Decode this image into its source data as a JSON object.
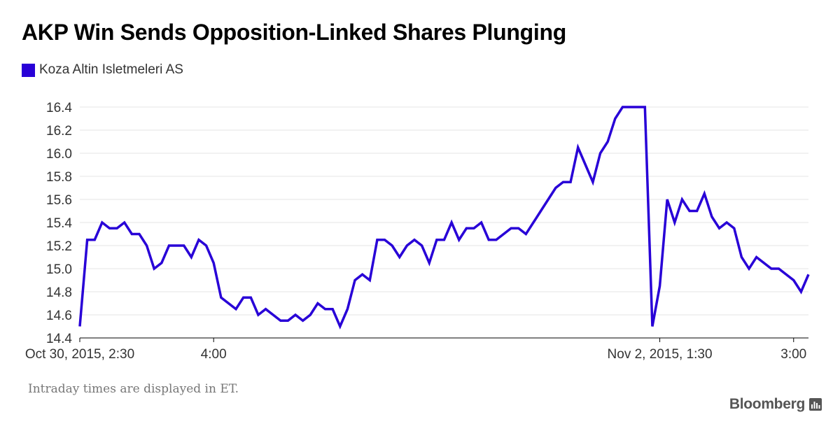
{
  "chart_data": {
    "type": "line",
    "title": "AKP Win Sends Opposition-Linked Shares Plunging",
    "xlabel": "",
    "ylabel": "",
    "ylim": [
      14.4,
      16.4
    ],
    "yticks": [
      "14.4",
      "14.6",
      "14.8",
      "15.0",
      "15.2",
      "15.4",
      "15.6",
      "15.8",
      "16.0",
      "16.2",
      "16.4"
    ],
    "xticks": [
      {
        "label": "Oct 30, 2015, 2:30",
        "index": 0
      },
      {
        "label": "4:00",
        "index": 18
      },
      {
        "label": "Nov 2, 2015, 1:30",
        "index": 78
      },
      {
        "label": "3:00",
        "index": 96
      }
    ],
    "grid": true,
    "legend_position": "top-left",
    "colors": {
      "series": "#2800d7",
      "grid": "#e6e6e6",
      "axis": "#000000"
    },
    "series": [
      {
        "name": "Koza Altin Isletmeleri AS",
        "values": [
          14.5,
          15.25,
          15.25,
          15.4,
          15.35,
          15.35,
          15.4,
          15.3,
          15.3,
          15.2,
          15.0,
          15.05,
          15.2,
          15.2,
          15.2,
          15.1,
          15.25,
          15.2,
          15.05,
          14.75,
          14.7,
          14.65,
          14.75,
          14.75,
          14.6,
          14.65,
          14.6,
          14.55,
          14.55,
          14.6,
          14.55,
          14.6,
          14.7,
          14.65,
          14.65,
          14.5,
          14.65,
          14.9,
          14.95,
          14.9,
          15.25,
          15.25,
          15.2,
          15.1,
          15.2,
          15.25,
          15.2,
          15.05,
          15.25,
          15.25,
          15.4,
          15.25,
          15.35,
          15.35,
          15.4,
          15.25,
          15.25,
          15.3,
          15.35,
          15.35,
          15.3,
          15.4,
          15.5,
          15.6,
          15.7,
          15.75,
          15.75,
          16.05,
          15.9,
          15.75,
          16.0,
          16.1,
          16.3,
          16.4,
          16.4,
          16.4,
          16.4,
          14.5,
          14.85,
          15.6,
          15.4,
          15.6,
          15.5,
          15.5,
          15.65,
          15.45,
          15.35,
          15.4,
          15.35,
          15.1,
          15.0,
          15.1,
          15.05,
          15.0,
          15.0,
          14.95,
          14.9,
          14.8,
          14.95
        ]
      }
    ]
  },
  "footnote": "Intraday times are displayed in ET.",
  "brand": {
    "name": "Bloomberg",
    "icon": "bloomberg-terminal-icon"
  }
}
